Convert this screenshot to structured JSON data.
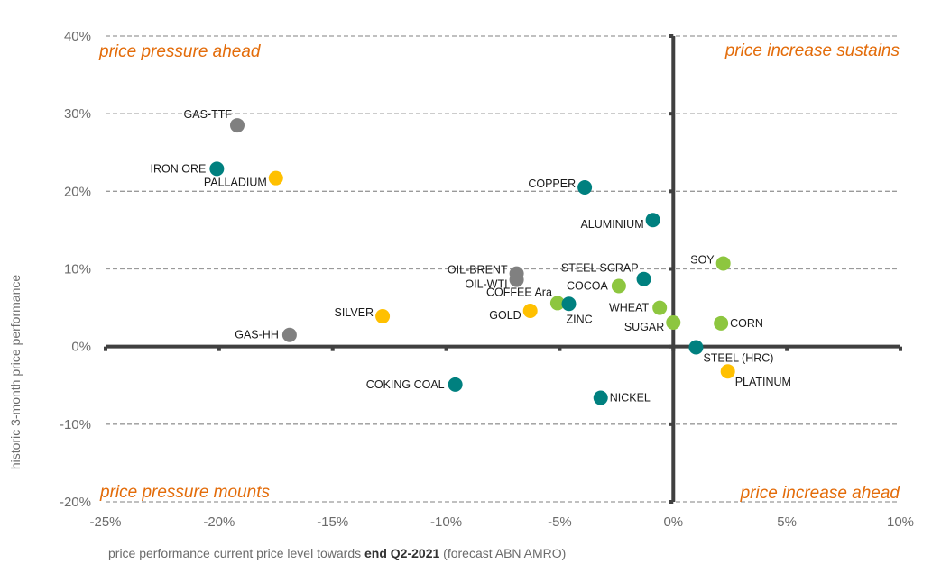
{
  "chart_data": {
    "type": "scatter",
    "title": "",
    "xlabel_parts": [
      "price performance current price level  towards ",
      "end Q2-2021",
      " (forecast ABN AMRO)"
    ],
    "ylabel": "historic 3-month price performance",
    "xlim": [
      -25,
      10
    ],
    "ylim": [
      -20,
      40
    ],
    "x_ticks": [
      -25,
      -20,
      -15,
      -10,
      -5,
      0,
      5,
      10
    ],
    "x_tick_labels": [
      "-25%",
      "-20%",
      "-15%",
      "-10%",
      "-5%",
      "0%",
      "5%",
      "10%"
    ],
    "y_ticks": [
      -20,
      -10,
      0,
      10,
      20,
      30,
      40
    ],
    "y_tick_labels": [
      "-20%",
      "-10%",
      "0%",
      "10%",
      "20%",
      "30%",
      "40%"
    ],
    "grid": "horizontal dashed",
    "quadrant_labels": {
      "top_left": "price pressure ahead",
      "top_right": "price increase sustains",
      "bottom_left": "price pressure mounts",
      "bottom_right": "price increase ahead"
    },
    "categories": {
      "energy": "#808080",
      "base_metals": "#00807f",
      "precious_metals": "#ffc000",
      "agriculturals": "#8dc63f"
    },
    "points": [
      {
        "name": "GAS-TTF",
        "x": -19.2,
        "y": 28.5,
        "group": "energy",
        "label_pos": "upper-left"
      },
      {
        "name": "IRON ORE",
        "x": -20.1,
        "y": 22.9,
        "group": "base_metals",
        "label_pos": "left"
      },
      {
        "name": "PALLADIUM",
        "x": -17.5,
        "y": 21.7,
        "group": "precious_metals",
        "label_pos": "lower-left"
      },
      {
        "name": "COPPER",
        "x": -3.9,
        "y": 20.5,
        "group": "base_metals",
        "label_pos": "left-up"
      },
      {
        "name": "ALUMINIUM",
        "x": -0.9,
        "y": 16.3,
        "group": "base_metals",
        "label_pos": "lower-left"
      },
      {
        "name": "SOY",
        "x": 2.2,
        "y": 10.7,
        "group": "agriculturals",
        "label_pos": "left-up"
      },
      {
        "name": "OIL-BRENT",
        "x": -6.9,
        "y": 9.4,
        "group": "energy",
        "label_pos": "left-up"
      },
      {
        "name": "OIL-WTI",
        "x": -6.9,
        "y": 8.6,
        "group": "energy",
        "label_pos": "lower-left"
      },
      {
        "name": "STEEL SCRAP",
        "x": -1.3,
        "y": 8.7,
        "group": "base_metals",
        "label_pos": "upper-left"
      },
      {
        "name": "COCOA",
        "x": -2.4,
        "y": 7.8,
        "group": "agriculturals",
        "label_pos": "left"
      },
      {
        "name": "COFFEE Ara",
        "x": -5.1,
        "y": 5.6,
        "group": "agriculturals",
        "label_pos": "upper-left"
      },
      {
        "name": "ZINC",
        "x": -4.6,
        "y": 5.5,
        "group": "base_metals",
        "label_pos": "below"
      },
      {
        "name": "WHEAT",
        "x": -0.6,
        "y": 5.0,
        "group": "agriculturals",
        "label_pos": "left"
      },
      {
        "name": "GOLD",
        "x": -6.3,
        "y": 4.6,
        "group": "precious_metals",
        "label_pos": "lower-left"
      },
      {
        "name": "SILVER",
        "x": -12.8,
        "y": 3.9,
        "group": "precious_metals",
        "label_pos": "left-up"
      },
      {
        "name": "SUGAR",
        "x": 0.0,
        "y": 3.1,
        "group": "agriculturals",
        "label_pos": "lower-left"
      },
      {
        "name": "CORN",
        "x": 2.1,
        "y": 3.0,
        "group": "agriculturals",
        "label_pos": "right"
      },
      {
        "name": "GAS-HH",
        "x": -16.9,
        "y": 1.5,
        "group": "energy",
        "label_pos": "left"
      },
      {
        "name": "STEEL (HRC)",
        "x": 1.0,
        "y": -0.1,
        "group": "base_metals",
        "label_pos": "lower-right"
      },
      {
        "name": "PLATINUM",
        "x": 2.4,
        "y": -3.2,
        "group": "precious_metals",
        "label_pos": "lower-right"
      },
      {
        "name": "COKING COAL",
        "x": -9.6,
        "y": -4.9,
        "group": "base_metals",
        "label_pos": "left"
      },
      {
        "name": "NICKEL",
        "x": -3.2,
        "y": -6.6,
        "group": "base_metals",
        "label_pos": "right"
      }
    ]
  }
}
